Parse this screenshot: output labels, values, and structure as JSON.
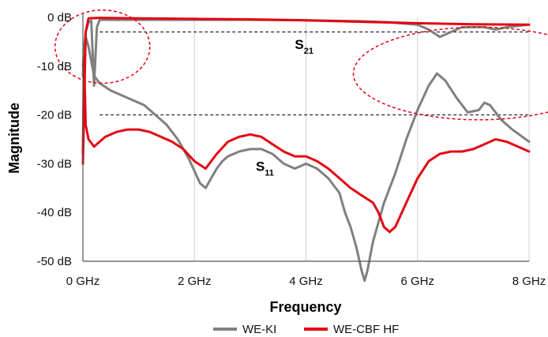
{
  "chart_data": {
    "type": "line",
    "xlabel": "Frequency",
    "ylabel": "Magnitude",
    "xlim": [
      0,
      8
    ],
    "ylim": [
      -50,
      0
    ],
    "x_ticks": [
      0,
      2,
      4,
      6,
      8
    ],
    "x_tick_labels": [
      "0 GHz",
      "2 GHz",
      "4 GHz",
      "6 GHz",
      "8 GHz"
    ],
    "y_ticks": [
      0,
      -10,
      -20,
      -30,
      -40,
      -50
    ],
    "y_tick_labels": [
      "0 dB",
      "-10 dB",
      "-20 dB",
      "-30 dB",
      "-40 dB",
      "-50 dB"
    ],
    "grid": "vertical",
    "legend_position": "bottom-center",
    "reference_lines": [
      -3,
      -20
    ],
    "annotations": [
      {
        "main": "S",
        "sub": "21",
        "x": 3.8,
        "y": -6.5
      },
      {
        "main": "S",
        "sub": "11",
        "x": 3.1,
        "y": -31.5
      }
    ],
    "highlights": [
      {
        "cx": 0.35,
        "cy": -6,
        "rx": 0.85,
        "ry": 7.5
      },
      {
        "cx": 7.1,
        "cy": -11.5,
        "rx": 2.25,
        "ry": 9.5
      }
    ],
    "series": [
      {
        "name": "WE-KI",
        "curve": "S11",
        "color": "#808080",
        "x": [
          0,
          0.02,
          0.05,
          0.1,
          0.15,
          0.2,
          0.3,
          0.5,
          0.7,
          0.9,
          1.1,
          1.3,
          1.5,
          1.7,
          1.9,
          2.1,
          2.2,
          2.3,
          2.4,
          2.5,
          2.6,
          2.8,
          3.0,
          3.2,
          3.4,
          3.5,
          3.6,
          3.8,
          4.0,
          4.2,
          4.4,
          4.6,
          4.7,
          4.8,
          4.9,
          5.0,
          5.05,
          5.1,
          5.2,
          5.4,
          5.6,
          5.8,
          6.0,
          6.2,
          6.35,
          6.5,
          6.7,
          6.9,
          7.1,
          7.2,
          7.3,
          7.5,
          7.7,
          8.0
        ],
        "y": [
          -12,
          -6,
          -4,
          -6,
          -9,
          -12,
          -13.5,
          -15,
          -16,
          -17,
          -18,
          -20,
          -22,
          -25,
          -29,
          -34,
          -35,
          -33,
          -31,
          -29.5,
          -28.5,
          -27.5,
          -27,
          -27,
          -28,
          -29,
          -30,
          -31,
          -30,
          -31,
          -33,
          -36,
          -40,
          -43,
          -47,
          -52,
          -54,
          -52,
          -46,
          -38,
          -32,
          -25,
          -19,
          -14,
          -11.5,
          -13,
          -16.5,
          -19.5,
          -19,
          -17.5,
          -18,
          -21,
          -23,
          -25.5
        ]
      },
      {
        "name": "WE-KI",
        "curve": "S21",
        "color": "#808080",
        "x": [
          0,
          0.05,
          0.1,
          0.15,
          0.2,
          0.25,
          0.3,
          1.0,
          2.0,
          3.0,
          4.0,
          5.0,
          5.5,
          6.0,
          6.2,
          6.4,
          6.6,
          6.8,
          7.0,
          7.2,
          7.4,
          7.6,
          8.0
        ],
        "y": [
          -10,
          -3,
          -1,
          -0.7,
          -14,
          -2,
          -0.5,
          -0.5,
          -0.5,
          -0.5,
          -0.6,
          -0.8,
          -1,
          -1.5,
          -2.5,
          -4,
          -3,
          -2,
          -2,
          -2,
          -2.5,
          -2,
          -1.5
        ]
      },
      {
        "name": "WE-CBF HF",
        "curve": "S11",
        "color": "#e30613",
        "x": [
          0,
          0.02,
          0.05,
          0.1,
          0.2,
          0.3,
          0.4,
          0.6,
          0.8,
          1.0,
          1.2,
          1.4,
          1.6,
          1.8,
          2.0,
          2.2,
          2.4,
          2.6,
          2.8,
          3.0,
          3.2,
          3.4,
          3.6,
          3.8,
          4.0,
          4.2,
          4.4,
          4.6,
          4.8,
          5.0,
          5.2,
          5.3,
          5.4,
          5.5,
          5.6,
          5.8,
          6.0,
          6.2,
          6.4,
          6.6,
          6.8,
          7.0,
          7.2,
          7.4,
          7.6,
          7.8,
          8.0
        ],
        "y": [
          -28,
          -8,
          -22,
          -25,
          -26.5,
          -25.5,
          -24.5,
          -23.5,
          -23,
          -23,
          -23.5,
          -24.5,
          -25.5,
          -27,
          -29.5,
          -31,
          -28,
          -25.5,
          -24.5,
          -24,
          -24.5,
          -26,
          -27.5,
          -28.5,
          -28.5,
          -29.5,
          -31,
          -33,
          -35,
          -36.5,
          -38,
          -40,
          -43,
          -44,
          -43,
          -38,
          -33,
          -29.5,
          -28,
          -27.5,
          -27.5,
          -27,
          -26,
          -25,
          -25.5,
          -26.5,
          -27.5
        ]
      },
      {
        "name": "WE-CBF HF",
        "curve": "S21",
        "color": "#e30613",
        "x": [
          0,
          0.05,
          0.1,
          0.3,
          1.0,
          2.0,
          3.0,
          4.0,
          5.0,
          6.0,
          7.0,
          8.0
        ],
        "y": [
          -30,
          -3,
          -0.2,
          -0.1,
          -0.2,
          -0.3,
          -0.4,
          -0.6,
          -0.9,
          -1.2,
          -1.4,
          -1.5
        ]
      }
    ]
  },
  "legend": {
    "items": [
      {
        "label": "WE-KI",
        "color": "#808080"
      },
      {
        "label": "WE-CBF HF",
        "color": "#e30613"
      }
    ]
  }
}
